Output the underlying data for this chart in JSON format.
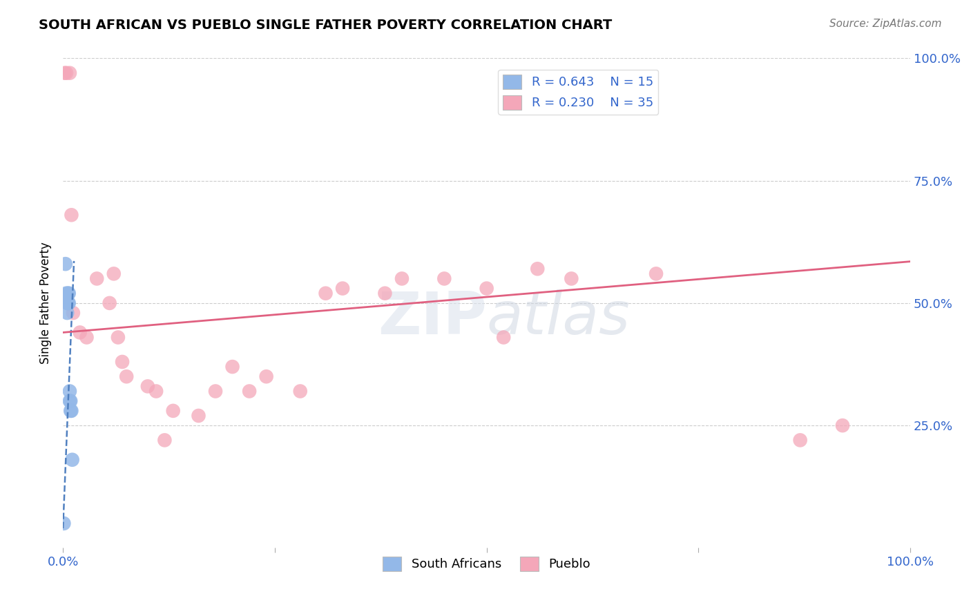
{
  "title": "SOUTH AFRICAN VS PUEBLO SINGLE FATHER POVERTY CORRELATION CHART",
  "source": "Source: ZipAtlas.com",
  "ylabel": "Single Father Poverty",
  "xlim": [
    0,
    1.0
  ],
  "ylim": [
    0,
    1.0
  ],
  "r_blue": 0.643,
  "n_blue": 15,
  "r_pink": 0.23,
  "n_pink": 35,
  "blue_color": "#93b8e8",
  "pink_color": "#f4a7b9",
  "trendline_blue_color": "#5080c0",
  "trendline_pink_color": "#e06080",
  "watermark": "ZIPatlas",
  "south_african_x": [
    0.001,
    0.003,
    0.004,
    0.005,
    0.005,
    0.006,
    0.006,
    0.007,
    0.007,
    0.008,
    0.008,
    0.009,
    0.009,
    0.01,
    0.011
  ],
  "south_african_y": [
    0.05,
    0.58,
    0.52,
    0.5,
    0.48,
    0.5,
    0.52,
    0.5,
    0.52,
    0.32,
    0.3,
    0.3,
    0.28,
    0.28,
    0.18
  ],
  "pueblo_x": [
    0.002,
    0.004,
    0.008,
    0.01,
    0.012,
    0.02,
    0.028,
    0.04,
    0.055,
    0.06,
    0.065,
    0.07,
    0.075,
    0.1,
    0.11,
    0.12,
    0.13,
    0.16,
    0.18,
    0.2,
    0.22,
    0.24,
    0.28,
    0.31,
    0.33,
    0.38,
    0.4,
    0.45,
    0.5,
    0.52,
    0.56,
    0.6,
    0.7,
    0.87,
    0.92
  ],
  "pueblo_y": [
    0.97,
    0.97,
    0.97,
    0.68,
    0.48,
    0.44,
    0.43,
    0.55,
    0.5,
    0.56,
    0.43,
    0.38,
    0.35,
    0.33,
    0.32,
    0.22,
    0.28,
    0.27,
    0.32,
    0.37,
    0.32,
    0.35,
    0.32,
    0.52,
    0.53,
    0.52,
    0.55,
    0.55,
    0.53,
    0.43,
    0.57,
    0.55,
    0.56,
    0.22,
    0.25
  ],
  "blue_trendline_x": [
    0.0,
    0.013
  ],
  "blue_trendline_y_start": 0.04,
  "blue_trendline_slope": 42.0,
  "pink_trendline_x": [
    0.0,
    1.0
  ],
  "pink_trendline_y_start": 0.44,
  "pink_trendline_y_end": 0.585
}
